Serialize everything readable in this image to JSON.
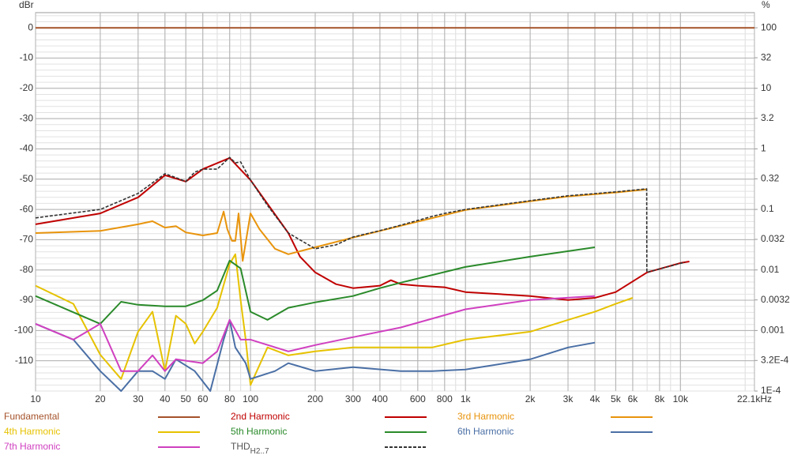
{
  "chart_data": {
    "type": "line",
    "y_label": "dBr",
    "y2_label": "%",
    "xscale": "log",
    "y2scale": "log",
    "grid": true,
    "minor_grid": true,
    "xlim": [
      10,
      22100
    ],
    "ylim": [
      -120,
      5
    ],
    "y2lim": [
      0.0001,
      177.8
    ],
    "xticks": [
      10,
      20,
      30,
      40,
      50,
      60,
      80,
      100,
      200,
      300,
      400,
      600,
      800,
      {
        "value": 1000,
        "label": "1k"
      },
      {
        "value": 2000,
        "label": "2k"
      },
      {
        "value": 3000,
        "label": "3k"
      },
      {
        "value": 4000,
        "label": "4k"
      },
      {
        "value": 5000,
        "label": "5k"
      },
      {
        "value": 6000,
        "label": "6k"
      },
      {
        "value": 8000,
        "label": "8k"
      },
      {
        "value": 10000,
        "label": "10k"
      },
      {
        "value": 22100,
        "label": "22.1kHz"
      }
    ],
    "yticks": [
      0,
      -10,
      -20,
      -30,
      -40,
      -50,
      -60,
      -70,
      -80,
      -90,
      -100,
      -110
    ],
    "y2ticks": [
      100,
      32,
      10,
      3.2,
      1,
      0.32,
      0.1,
      0.032,
      0.01,
      0.0032,
      0.001,
      {
        "value": 0.00032,
        "label": "3.2E-4"
      },
      {
        "value": 0.0001,
        "label": "1E-4"
      }
    ],
    "series": [
      {
        "name": "Fundamental",
        "color": "#a5522a",
        "x": [
          10,
          22100
        ],
        "values": [
          0,
          0
        ]
      },
      {
        "name": "2nd Harmonic",
        "color": "#c00000",
        "x": [
          10,
          20,
          30,
          40,
          50,
          60,
          80,
          100,
          150,
          170,
          200,
          250,
          300,
          400,
          450,
          500,
          600,
          800,
          1000,
          2000,
          3000,
          4000,
          5000,
          7000,
          10000,
          11000
        ],
        "values": [
          -64.9,
          -61.3,
          -56,
          -48.7,
          -50.8,
          -46.7,
          -43,
          -50.3,
          -67.8,
          -75.6,
          -80.8,
          -84.7,
          -86,
          -85.2,
          -83.4,
          -84.7,
          -85.2,
          -85.7,
          -87.3,
          -88.6,
          -89.9,
          -89.2,
          -87.3,
          -80.8,
          -77.7,
          -77.2
        ]
      },
      {
        "name": "3rd Harmonic",
        "color": "#e8940c",
        "x": [
          10,
          20,
          30,
          35,
          40,
          45,
          50,
          60,
          70,
          75,
          78,
          82,
          85,
          88,
          92,
          100,
          110,
          130,
          150,
          200,
          300,
          500,
          1000,
          2000,
          3000,
          5000,
          6970
        ],
        "values": [
          -67.8,
          -67.1,
          -64.9,
          -63.9,
          -66,
          -65.5,
          -67.6,
          -68.6,
          -67.8,
          -60.7,
          -66.5,
          -70.4,
          -70.4,
          -61.3,
          -77,
          -61.3,
          -66.5,
          -73,
          -74.8,
          -72.5,
          -69.3,
          -65.4,
          -60.2,
          -57.3,
          -55.7,
          -54.4,
          -53.4
        ]
      },
      {
        "name": "4th Harmonic",
        "color": "#e6c200",
        "x": [
          10,
          15,
          20,
          25,
          30,
          35,
          40,
          45,
          50,
          55,
          60,
          70,
          80,
          85,
          90,
          95,
          100,
          120,
          150,
          200,
          300,
          500,
          700,
          1000,
          2000,
          3000,
          4000,
          5000,
          6000
        ],
        "values": [
          -85.2,
          -91.2,
          -108,
          -116,
          -100.4,
          -93.8,
          -113.4,
          -95.1,
          -97.8,
          -104.3,
          -100.4,
          -92.5,
          -78,
          -74.8,
          -90,
          -103,
          -118,
          -105.6,
          -108.2,
          -106.9,
          -105.6,
          -105.6,
          -105.6,
          -103,
          -100.4,
          -96.5,
          -93.8,
          -91.2,
          -89.2
        ]
      },
      {
        "name": "5th Harmonic",
        "color": "#2a8a2a",
        "x": [
          10,
          20,
          25,
          30,
          40,
          50,
          60,
          70,
          80,
          90,
          100,
          120,
          150,
          200,
          300,
          400,
          500,
          1000,
          2000,
          4000
        ],
        "values": [
          -88.6,
          -97.8,
          -90.5,
          -91.5,
          -92,
          -92,
          -90,
          -86.8,
          -76.9,
          -79.5,
          -93.8,
          -96.5,
          -92.5,
          -90.7,
          -88.6,
          -86,
          -84.2,
          -79,
          -75.6,
          -72.5
        ]
      },
      {
        "name": "6th Harmonic",
        "color": "#4a6fa5",
        "x": [
          10,
          15,
          20,
          25,
          30,
          35,
          40,
          45,
          55,
          65,
          75,
          80,
          85,
          95,
          100,
          130,
          150,
          200,
          300,
          500,
          700,
          1000,
          2000,
          3000,
          4000
        ],
        "values": [
          -97.8,
          -103,
          -113.4,
          -120,
          -113.4,
          -113.4,
          -116,
          -109.5,
          -113.4,
          -120,
          -103,
          -96.5,
          -105.6,
          -110.8,
          -116,
          -113.4,
          -110.8,
          -113.4,
          -112.1,
          -113.4,
          -113.4,
          -112.9,
          -109.5,
          -105.6,
          -104
        ]
      },
      {
        "name": "7th Harmonic",
        "color": "#d040c0",
        "x": [
          10,
          15,
          20,
          25,
          30,
          35,
          40,
          45,
          60,
          70,
          80,
          90,
          100,
          150,
          200,
          300,
          500,
          1000,
          2000,
          4000
        ],
        "values": [
          -97.8,
          -103,
          -97.8,
          -113.4,
          -113.4,
          -108.2,
          -113.4,
          -109.5,
          -110.8,
          -106.9,
          -96.5,
          -103,
          -103,
          -106.9,
          -104.8,
          -102.2,
          -99,
          -93,
          -89.9,
          -88.6
        ]
      },
      {
        "name": "THD",
        "subscript": "H2..7",
        "color": "#333333",
        "dash": true,
        "x": [
          10,
          20,
          30,
          40,
          45,
          50,
          55,
          60,
          70,
          80,
          85,
          90,
          100,
          120,
          150,
          200,
          250,
          300,
          400,
          500,
          700,
          800,
          1000,
          2000,
          3000,
          5000,
          6970,
          6980,
          10500
        ],
        "values": [
          -62.8,
          -60,
          -54.7,
          -48.2,
          -49.5,
          -50.8,
          -47.7,
          -46.7,
          -46.7,
          -42.8,
          -44.6,
          -44.3,
          -50.3,
          -58.7,
          -67.8,
          -73,
          -71.7,
          -69.1,
          -67,
          -65.2,
          -62.3,
          -61.3,
          -60,
          -57.1,
          -55.5,
          -54.2,
          -53.2,
          -80.8,
          -77.4
        ]
      }
    ]
  }
}
